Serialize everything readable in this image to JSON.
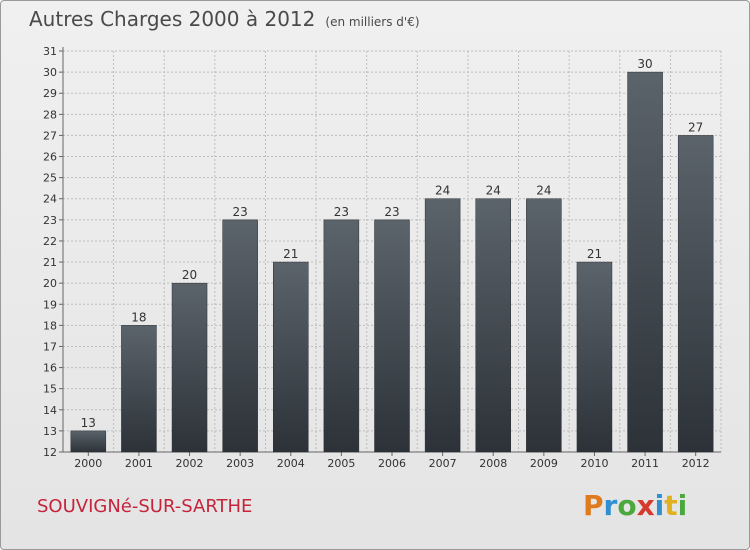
{
  "title": "Autres Charges 2000 à 2012",
  "subtitle": "(en milliers d'€)",
  "commune": "SOUVIGNé-SUR-SARTHE",
  "logo": {
    "chars": [
      "P",
      "r",
      "o",
      "x",
      "i",
      "t",
      "i"
    ],
    "colors": [
      "#e07a1f",
      "#2f8fd0",
      "#4aa83c",
      "#d63a2e",
      "#2f8fd0",
      "#e0b21f",
      "#4aa83c"
    ]
  },
  "colors": {
    "bar_top": "#5b636b",
    "bar_bottom": "#2c3238",
    "grid": "#bdbdbd",
    "text": "#333333"
  },
  "chart_data": {
    "type": "bar",
    "categories": [
      "2000",
      "2001",
      "2002",
      "2003",
      "2004",
      "2005",
      "2006",
      "2007",
      "2008",
      "2009",
      "2010",
      "2011",
      "2012"
    ],
    "values": [
      13,
      18,
      20,
      23,
      21,
      23,
      23,
      24,
      24,
      24,
      21,
      30,
      27
    ],
    "ylim": [
      12,
      31
    ],
    "yticks": [
      12,
      13,
      14,
      15,
      16,
      17,
      18,
      19,
      20,
      21,
      22,
      23,
      24,
      25,
      26,
      27,
      28,
      29,
      30,
      31
    ],
    "grid": true,
    "data_labels": true
  }
}
